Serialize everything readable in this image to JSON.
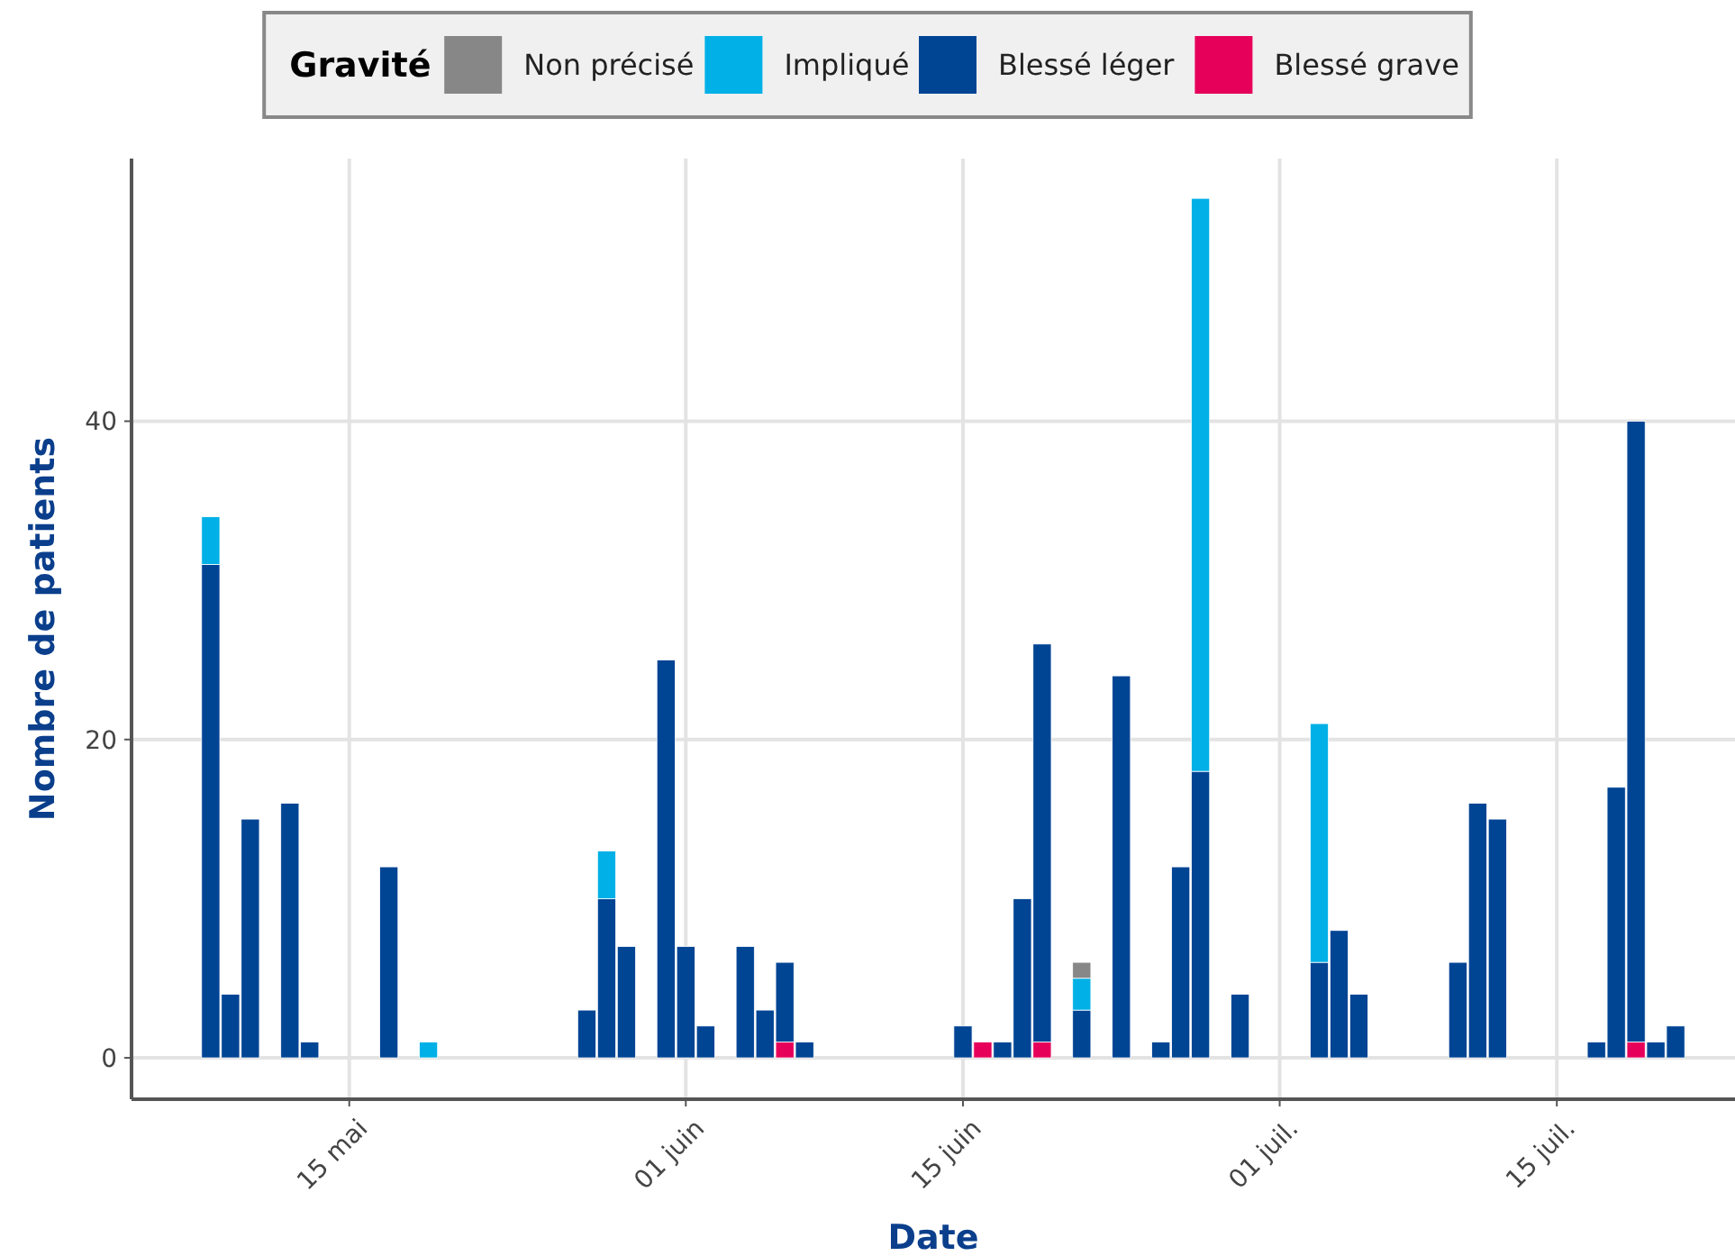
{
  "chart_data": {
    "type": "bar",
    "stacked": true,
    "xlabel": "Date",
    "ylabel": "Nombre de patients",
    "legend_title": "Gravité",
    "legend": "top",
    "grid": true,
    "x": [
      "--05-08",
      "--05-09",
      "--05-10",
      "--05-12",
      "--05-13",
      "--05-17",
      "--05-19",
      "--05-27",
      "--05-28",
      "--05-29",
      "--05-31",
      "--06-01",
      "--06-02",
      "--06-04",
      "--06-05",
      "--06-06",
      "--06-07",
      "--06-15",
      "--06-16",
      "--06-17",
      "--06-18",
      "--06-19",
      "--06-21",
      "--06-23",
      "--06-25",
      "--06-26",
      "--06-27",
      "--06-29",
      "--07-03",
      "--07-04",
      "--07-05",
      "--07-10",
      "--07-11",
      "--07-12",
      "--07-17",
      "--07-18",
      "--07-19",
      "--07-20",
      "--07-21"
    ],
    "xlim": [
      "--05-04",
      "--07-24"
    ],
    "xticks": [
      {
        "value": "--05-15",
        "label": "15 mai"
      },
      {
        "value": "--06-01",
        "label": "01 juin"
      },
      {
        "value": "--06-15",
        "label": "15 juin"
      },
      {
        "value": "--07-01",
        "label": "01 juil."
      },
      {
        "value": "--07-15",
        "label": "15 juil."
      }
    ],
    "ylim": [
      -2.6,
      56.5
    ],
    "yticks": [
      0,
      20,
      40
    ],
    "series": [
      {
        "name": "Blessé grave",
        "color": "#e6005a",
        "values": [
          null,
          null,
          null,
          null,
          null,
          null,
          null,
          null,
          null,
          null,
          null,
          null,
          null,
          null,
          null,
          1,
          null,
          null,
          1,
          null,
          null,
          1,
          null,
          null,
          null,
          null,
          null,
          null,
          null,
          null,
          null,
          null,
          null,
          null,
          null,
          null,
          1,
          null,
          null
        ]
      },
      {
        "name": "Blessé léger",
        "color": "#004494",
        "values": [
          31,
          4,
          15,
          16,
          1,
          12,
          null,
          3,
          10,
          7,
          25,
          7,
          2,
          7,
          3,
          5,
          1,
          2,
          null,
          1,
          10,
          25,
          3,
          24,
          1,
          12,
          18,
          4,
          6,
          8,
          4,
          6,
          16,
          15,
          1,
          17,
          39,
          1,
          2
        ]
      },
      {
        "name": "Impliqué",
        "color": "#00b0e6",
        "values": [
          3,
          null,
          null,
          null,
          null,
          null,
          1,
          null,
          3,
          null,
          null,
          null,
          null,
          null,
          null,
          null,
          null,
          null,
          null,
          null,
          null,
          null,
          2,
          null,
          null,
          null,
          36,
          null,
          15,
          null,
          null,
          null,
          null,
          null,
          null,
          null,
          null,
          null,
          null
        ]
      },
      {
        "name": "Non précisé",
        "color": "#878787",
        "values": [
          null,
          null,
          null,
          null,
          null,
          null,
          null,
          null,
          null,
          null,
          null,
          null,
          null,
          null,
          null,
          null,
          null,
          null,
          null,
          null,
          null,
          null,
          1,
          null,
          null,
          null,
          null,
          null,
          null,
          null,
          null,
          null,
          null,
          null,
          null,
          null,
          null,
          null,
          null
        ]
      }
    ]
  }
}
